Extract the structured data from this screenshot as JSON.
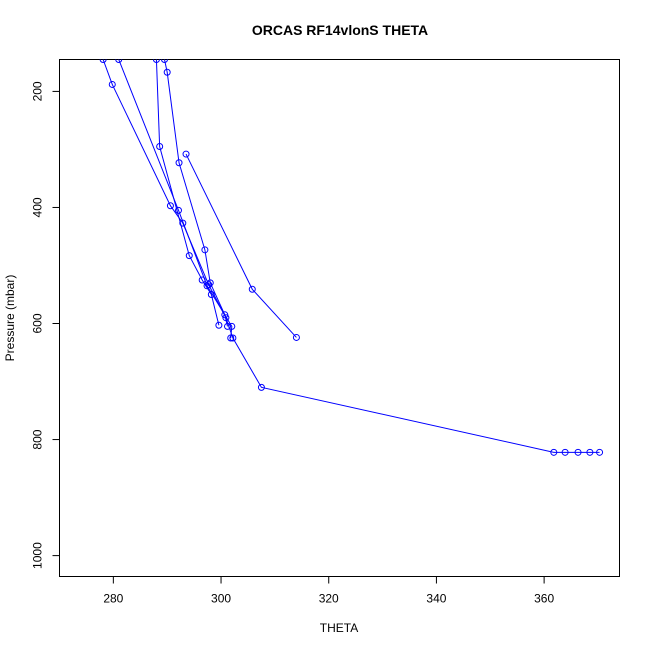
{
  "chart_data": {
    "type": "line",
    "title": "ORCAS RF14vlonS THETA",
    "xlabel": "THETA",
    "ylabel": "Pressure (mbar)",
    "xlim": [
      270,
      374
    ],
    "ylim": [
      1036,
      145
    ],
    "y_reversed": true,
    "x_ticks": [
      280,
      300,
      320,
      340,
      360
    ],
    "y_ticks": [
      200,
      400,
      600,
      800,
      1000
    ],
    "grid": false,
    "series": [
      {
        "color": "#0000ff",
        "marker": "open-circle",
        "x": [
          278.1,
          279.8,
          290.6,
          292.9,
          297.7,
          300.9,
          302.2,
          307.5,
          361.8,
          363.9,
          366.3,
          368.5,
          370.3
        ],
        "y": [
          145,
          188,
          397,
          427,
          533,
          590,
          625,
          710,
          822,
          822,
          822,
          822,
          822
        ]
      },
      {
        "color": "#0000ff",
        "marker": "open-circle",
        "x": [
          281.0,
          292.1,
          297.4,
          302.0,
          301.8
        ],
        "y": [
          145,
          405,
          535,
          605,
          625
        ]
      },
      {
        "color": "#0000ff",
        "marker": "open-circle",
        "x": [
          288.0,
          288.6,
          294.1,
          296.5,
          298.2,
          299.6
        ],
        "y": [
          145,
          295,
          483,
          525,
          550,
          603
        ]
      },
      {
        "color": "#0000ff",
        "marker": "open-circle",
        "x": [
          289.5,
          290.0,
          292.2,
          297.0,
          298.0,
          300.7,
          301.2
        ],
        "y": [
          145,
          167,
          323,
          473,
          530,
          585,
          605
        ]
      },
      {
        "color": "#0000ff",
        "marker": "open-circle",
        "x": [
          293.5,
          305.8,
          314.0
        ],
        "y": [
          308,
          541,
          624
        ]
      }
    ]
  }
}
